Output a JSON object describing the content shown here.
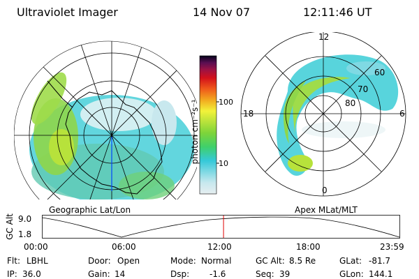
{
  "header": {
    "title": "Ultraviolet Imager",
    "date": "14 Nov 07",
    "time": "12:11:46 UT"
  },
  "colors": {
    "bg": "#ffffff",
    "ink": "#000000",
    "marker": "#e00000",
    "meridian": "#0044ff"
  },
  "colorbar": {
    "label": "photon cm⁻²s⁻¹",
    "ticks": [
      "100",
      "10"
    ],
    "scale": "log",
    "stops": [
      "#e6eef0",
      "#c8e8ee",
      "#7fd9e3",
      "#35c9d9",
      "#3fd06b",
      "#7dd43a",
      "#b7e23b",
      "#f2f23a",
      "#f2a91f",
      "#ef5a1b",
      "#d3111b",
      "#9b1245",
      "#590e52",
      "#22114a",
      "#05021a"
    ]
  },
  "left_map": {
    "label": "Geographic Lat/Lon",
    "icons": [
      "continent-outline-icon",
      "pole-meridian-icon"
    ]
  },
  "right_map": {
    "label": "Apex MLat/MLT",
    "mlt_labels": [
      "12",
      "18",
      "6",
      "0"
    ],
    "lat_labels": [
      "60",
      "70",
      "80"
    ]
  },
  "timeline": {
    "ylabel": "GC Alt",
    "yticks": [
      "9.0",
      "1.8"
    ],
    "xticks": [
      "00:00",
      "06:00",
      "12:00",
      "18:00",
      "23:59"
    ],
    "marker_time_fraction": 0.508
  },
  "status": {
    "filter_label": "Flt:",
    "filter": "LBHL",
    "ip_label": "IP:",
    "ip": "36.0",
    "door_label": "Door:",
    "door": "Open",
    "gain_label": "Gain:",
    "gain": "14",
    "mode_label": "Mode:",
    "mode": "Normal",
    "dsp_label": "Dsp:",
    "dsp": "-1.6",
    "gcalt_label": "GC Alt:",
    "gcalt": "8.5 Re",
    "seq_label": "Seq:",
    "seq": "39",
    "glat_label": "GLat:",
    "glat": "-81.7",
    "glon_label": "GLon:",
    "glon": "144.1"
  }
}
